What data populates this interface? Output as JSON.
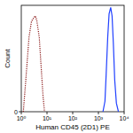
{
  "chart_data": {
    "type": "line",
    "log": "x",
    "x_label": "Human CD45 (2D1) PE",
    "y_label": "Count",
    "xlim": [
      1,
      10000
    ],
    "xticks": [
      {
        "value": 1,
        "label": "10⁰"
      },
      {
        "value": 10,
        "label": "10¹"
      },
      {
        "value": 100,
        "label": "10²"
      },
      {
        "value": 1000,
        "label": "10³"
      },
      {
        "value": 10000,
        "label": "10⁴"
      }
    ],
    "ylim": [
      0,
      100
    ],
    "yticks": [
      0
    ],
    "grid": false,
    "series": [
      {
        "color": "#8b1a1a",
        "line_style": "dotted",
        "x": [
          1.2,
          1.5,
          2,
          2.5,
          3,
          3.5,
          4,
          5,
          6,
          7,
          8
        ],
        "values": [
          0,
          30,
          70,
          85,
          88,
          90,
          86,
          70,
          40,
          15,
          0
        ]
      },
      {
        "color": "#2040ff",
        "line_style": "solid",
        "x": [
          1500,
          1800,
          2000,
          2300,
          2600,
          3000,
          3400,
          3800,
          4300,
          5000,
          6000
        ],
        "values": [
          0,
          10,
          35,
          70,
          92,
          98,
          90,
          65,
          30,
          8,
          0
        ]
      }
    ]
  }
}
